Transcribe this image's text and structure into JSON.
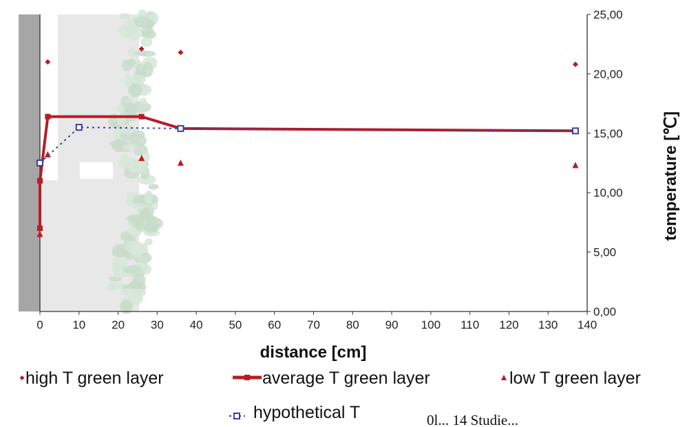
{
  "chart_data": {
    "type": "line",
    "xlabel": "distance [cm]",
    "ylabel": "temperature [℃]",
    "xlim": [
      0,
      140
    ],
    "ylim": [
      0,
      25
    ],
    "x_ticks": [
      "0",
      "10",
      "20",
      "30",
      "40",
      "50",
      "60",
      "70",
      "80",
      "90",
      "100",
      "110",
      "120",
      "130",
      "140"
    ],
    "y_ticks": [
      "0,00",
      "5,00",
      "10,00",
      "15,00",
      "20,00",
      "25,00"
    ],
    "grid": false,
    "legend_placement": "bottom",
    "series": [
      {
        "name": "high T green layer",
        "marker": "diamond",
        "line": "none",
        "color": "#b91c24",
        "points": [
          [
            2,
            21.0
          ],
          [
            26,
            22.1
          ],
          [
            36,
            21.8
          ],
          [
            137,
            20.8
          ]
        ]
      },
      {
        "name": "average T green layer",
        "marker": "square",
        "line": "solid",
        "color": "#b91c24",
        "points": [
          [
            0,
            7.0
          ],
          [
            0,
            11.0
          ],
          [
            2,
            16.4
          ],
          [
            26,
            16.4
          ],
          [
            36,
            15.4
          ],
          [
            137,
            15.2
          ]
        ]
      },
      {
        "name": "low T green layer",
        "marker": "triangle",
        "line": "none",
        "color": "#b91c24",
        "points": [
          [
            0,
            6.5
          ],
          [
            2,
            13.2
          ],
          [
            26,
            12.9
          ],
          [
            36,
            12.5
          ],
          [
            137,
            12.3
          ]
        ]
      },
      {
        "name": "hypothetical T",
        "marker": "square-open",
        "line": "dotted",
        "color": "#3a3f9e",
        "points": [
          [
            0,
            12.5
          ],
          [
            10,
            15.5
          ],
          [
            36,
            15.4
          ],
          [
            137,
            15.2
          ]
        ]
      }
    ]
  },
  "caption_fragment": "0l... 14 Studie..."
}
